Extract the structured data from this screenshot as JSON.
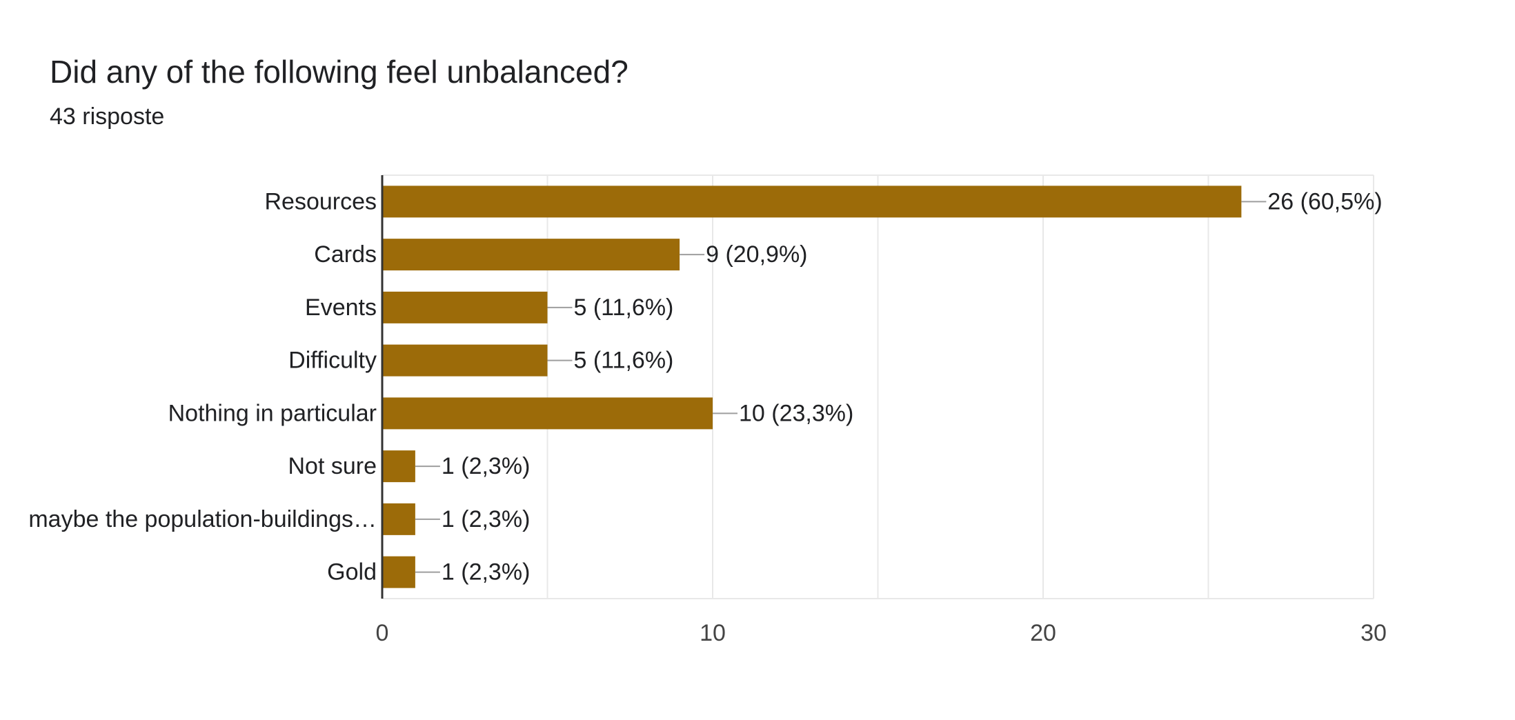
{
  "header": {
    "title": "Did any of the following feel unbalanced?",
    "response_count": "43 risposte"
  },
  "colors": {
    "bar": "#9c6b09",
    "gridline": "#e8e8e8",
    "axis_line": "#333333",
    "leader_line": "#9e9e9e",
    "text": "#202124",
    "tick_text": "#444444"
  },
  "chart_data": {
    "type": "bar",
    "orientation": "horizontal",
    "categories": [
      "Resources",
      "Cards",
      "Events",
      "Difficulty",
      "Nothing in particular",
      "Not sure",
      "maybe the population-buildings…",
      "Gold"
    ],
    "values": [
      26,
      9,
      5,
      5,
      10,
      1,
      1,
      1
    ],
    "data_labels": [
      "26 (60,5%)",
      "9 (20,9%)",
      "5 (11,6%)",
      "5 (11,6%)",
      "10 (23,3%)",
      "1 (2,3%)",
      "1 (2,3%)",
      "1 (2,3%)"
    ],
    "xlim": [
      0,
      30
    ],
    "x_ticks": [
      0,
      10,
      20,
      30
    ],
    "x_tick_labels": [
      "0",
      "10",
      "20",
      "30"
    ],
    "grid": true,
    "legend": "none"
  }
}
